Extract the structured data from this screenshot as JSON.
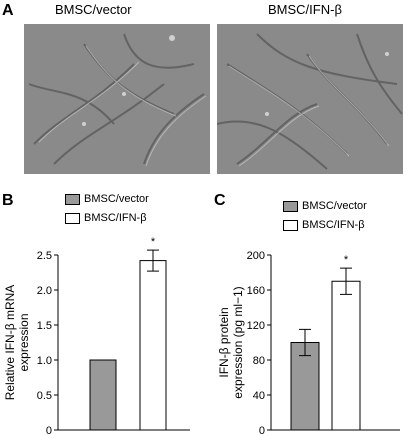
{
  "panels": {
    "a": {
      "letter": "A",
      "left_title": "BMSC/vector",
      "right_title": "BMSC/IFN-β"
    },
    "b": {
      "letter": "B"
    },
    "c": {
      "letter": "C"
    }
  },
  "colors": {
    "vector": "#999999",
    "ifn": "#ffffff",
    "micro_bg": "#8a8a8a"
  },
  "chart_data": [
    {
      "type": "bar",
      "panel": "B",
      "categories": [
        "BMSC/vector",
        "BMSC/IFN-β"
      ],
      "values": [
        1.0,
        2.42
      ],
      "errors": [
        0,
        0.15
      ],
      "significance": [
        "",
        "*"
      ],
      "ylabel_line1": "Relative IFN-β mRNA",
      "ylabel_line2": "expression",
      "ylim": [
        0,
        2.5
      ],
      "yticks": [
        "0",
        "0.5",
        "1.0",
        "1.5",
        "2.0",
        "2.5"
      ],
      "legend": [
        "BMSC/vector",
        "BMSC/IFN-β"
      ]
    },
    {
      "type": "bar",
      "panel": "C",
      "categories": [
        "BMSC/vector",
        "BMSC/IFN-β"
      ],
      "values": [
        100,
        170
      ],
      "errors": [
        15,
        15
      ],
      "significance": [
        "",
        "*"
      ],
      "ylabel_line1": "IFN-β protein",
      "ylabel_line2": "expression (pg ml−1)",
      "ylim": [
        0,
        200
      ],
      "yticks": [
        "0",
        "40",
        "80",
        "120",
        "160",
        "200"
      ],
      "legend": [
        "BMSC/vector",
        "BMSC/IFN-β"
      ]
    }
  ]
}
